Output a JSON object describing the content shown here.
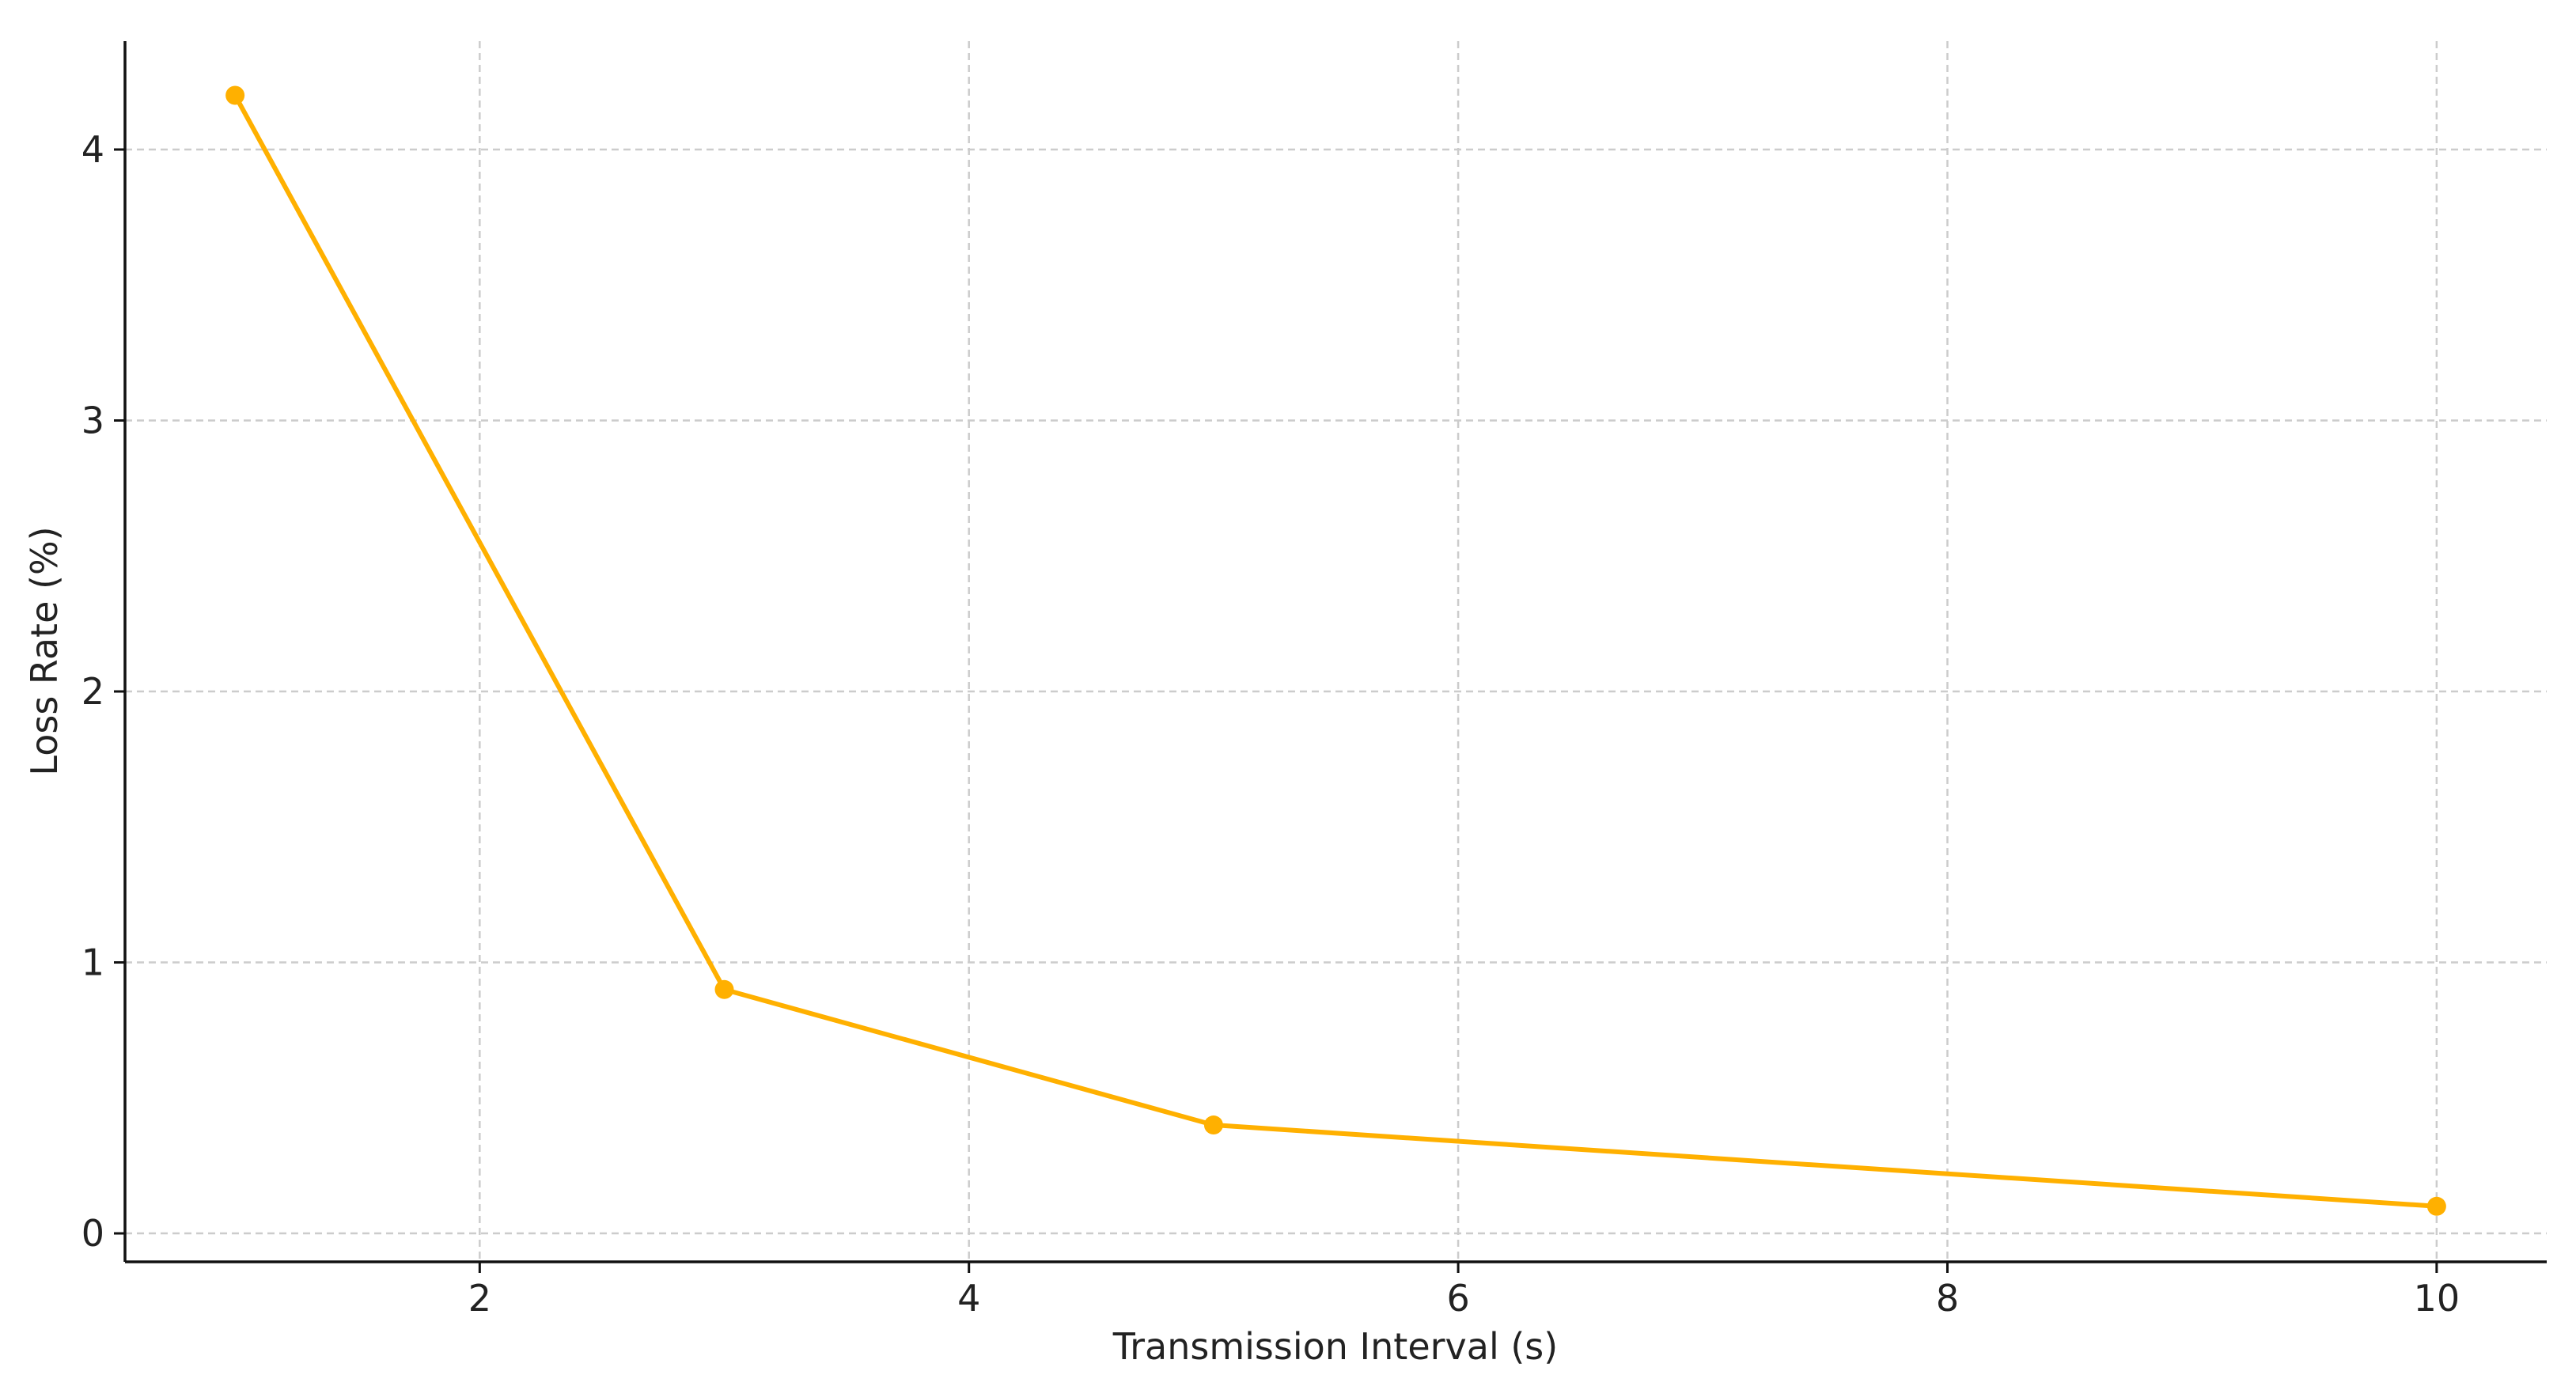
{
  "chart_data": {
    "type": "line",
    "x_label": "Transmission Interval (s)",
    "y_label": "Loss Rate (%)",
    "x": [
      1,
      3,
      5,
      10
    ],
    "values": [
      4.2,
      0.9,
      0.4,
      0.1
    ],
    "color": "#ffb000",
    "xlim": [
      0.55,
      10.45
    ],
    "ylim": [
      -0.105,
      4.4
    ],
    "xticks": [
      2,
      4,
      6,
      8,
      10
    ],
    "yticks": [
      0,
      1,
      2,
      3,
      4
    ],
    "grid": true
  }
}
